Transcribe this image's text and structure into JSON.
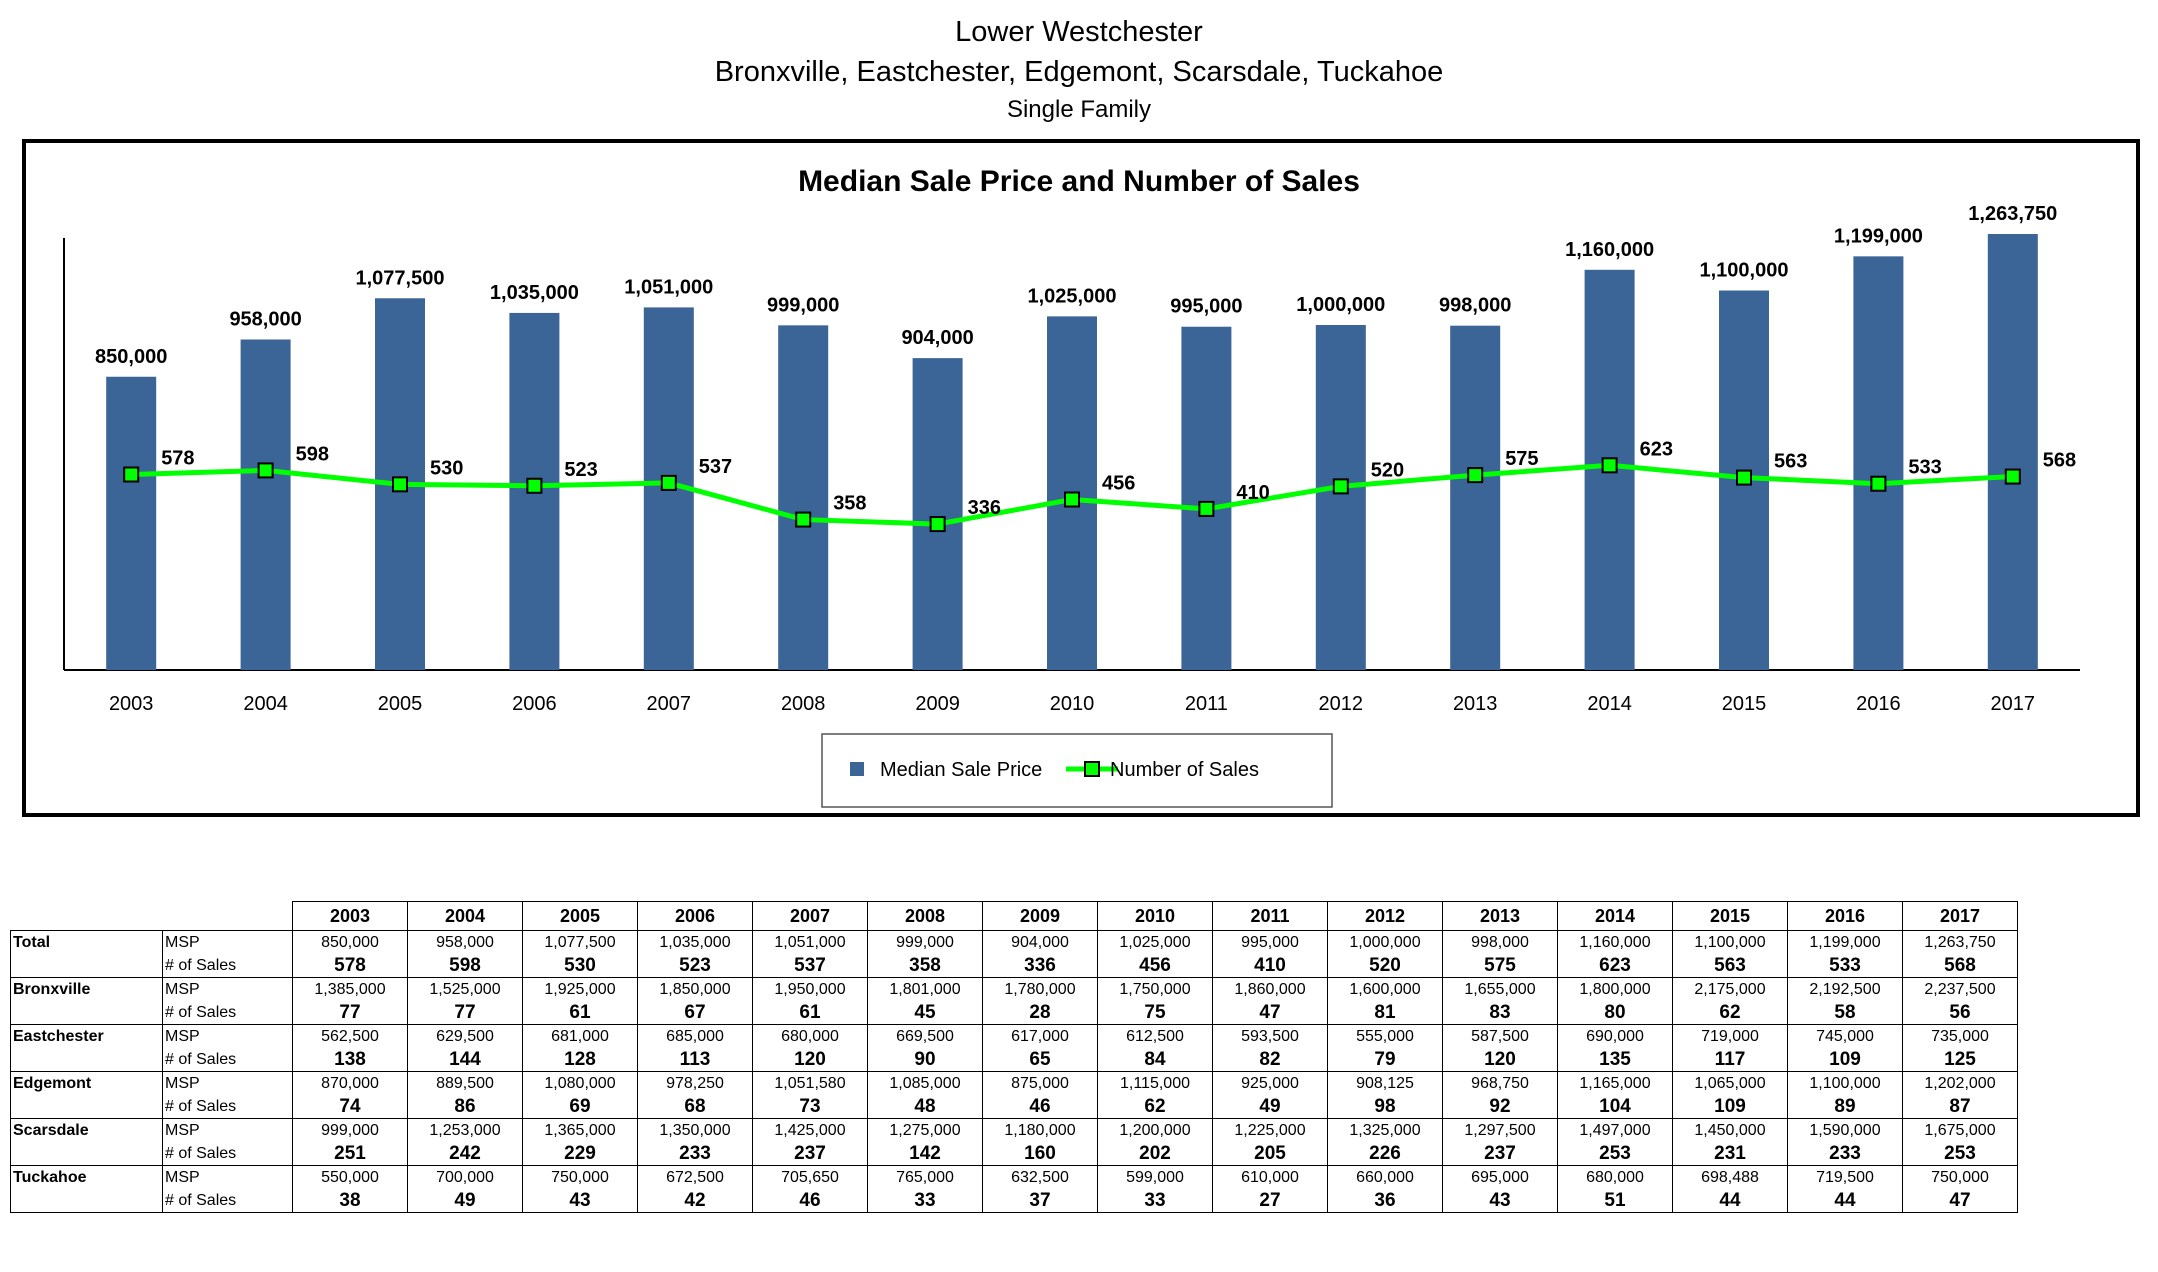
{
  "header": {
    "line1": "Lower Westchester",
    "line2": "Bronxville, Eastchester, Edgemont, Scarsdale, Tuckahoe",
    "line3": "Single Family"
  },
  "chart_data": {
    "type": "bar",
    "title": "Median Sale Price and Number of Sales",
    "categories": [
      "2003",
      "2004",
      "2005",
      "2006",
      "2007",
      "2008",
      "2009",
      "2010",
      "2011",
      "2012",
      "2013",
      "2014",
      "2015",
      "2016",
      "2017"
    ],
    "series": [
      {
        "name": "Median Sale Price",
        "type": "bar",
        "color": "#3b6497",
        "values": [
          850000,
          958000,
          1077500,
          1035000,
          1051000,
          999000,
          904000,
          1025000,
          995000,
          1000000,
          998000,
          1160000,
          1100000,
          1199000,
          1263750
        ],
        "labels": [
          "850,000",
          "958,000",
          "1,077,500",
          "1,035,000",
          "1,051,000",
          "999,000",
          "904,000",
          "1,025,000",
          "995,000",
          "1,000,000",
          "998,000",
          "1,160,000",
          "1,100,000",
          "1,199,000",
          "1,263,750"
        ]
      },
      {
        "name": "Number of Sales",
        "type": "line",
        "color": "#00ff00",
        "values": [
          578,
          598,
          530,
          523,
          537,
          358,
          336,
          456,
          410,
          520,
          575,
          623,
          563,
          533,
          568
        ],
        "labels": [
          "578",
          "598",
          "530",
          "523",
          "537",
          "358",
          "336",
          "456",
          "410",
          "520",
          "575",
          "623",
          "563",
          "533",
          "568"
        ]
      }
    ],
    "xlabel": "",
    "ylabel": "",
    "legend_position": "bottom-center",
    "grid": false
  },
  "table": {
    "years": [
      "2003",
      "2004",
      "2005",
      "2006",
      "2007",
      "2008",
      "2009",
      "2010",
      "2011",
      "2012",
      "2013",
      "2014",
      "2015",
      "2016",
      "2017"
    ],
    "msp_label": "MSP",
    "count_label": "# of Sales",
    "regions": [
      {
        "name": "Total",
        "msp": [
          "850,000",
          "958,000",
          "1,077,500",
          "1,035,000",
          "1,051,000",
          "999,000",
          "904,000",
          "1,025,000",
          "995,000",
          "1,000,000",
          "998,000",
          "1,160,000",
          "1,100,000",
          "1,199,000",
          "1,263,750"
        ],
        "count": [
          "578",
          "598",
          "530",
          "523",
          "537",
          "358",
          "336",
          "456",
          "410",
          "520",
          "575",
          "623",
          "563",
          "533",
          "568"
        ]
      },
      {
        "name": "Bronxville",
        "msp": [
          "1,385,000",
          "1,525,000",
          "1,925,000",
          "1,850,000",
          "1,950,000",
          "1,801,000",
          "1,780,000",
          "1,750,000",
          "1,860,000",
          "1,600,000",
          "1,655,000",
          "1,800,000",
          "2,175,000",
          "2,192,500",
          "2,237,500"
        ],
        "count": [
          "77",
          "77",
          "61",
          "67",
          "61",
          "45",
          "28",
          "75",
          "47",
          "81",
          "83",
          "80",
          "62",
          "58",
          "56"
        ]
      },
      {
        "name": "Eastchester",
        "msp": [
          "562,500",
          "629,500",
          "681,000",
          "685,000",
          "680,000",
          "669,500",
          "617,000",
          "612,500",
          "593,500",
          "555,000",
          "587,500",
          "690,000",
          "719,000",
          "745,000",
          "735,000"
        ],
        "count": [
          "138",
          "144",
          "128",
          "113",
          "120",
          "90",
          "65",
          "84",
          "82",
          "79",
          "120",
          "135",
          "117",
          "109",
          "125"
        ]
      },
      {
        "name": "Edgemont",
        "msp": [
          "870,000",
          "889,500",
          "1,080,000",
          "978,250",
          "1,051,580",
          "1,085,000",
          "875,000",
          "1,115,000",
          "925,000",
          "908,125",
          "968,750",
          "1,165,000",
          "1,065,000",
          "1,100,000",
          "1,202,000"
        ],
        "count": [
          "74",
          "86",
          "69",
          "68",
          "73",
          "48",
          "46",
          "62",
          "49",
          "98",
          "92",
          "104",
          "109",
          "89",
          "87"
        ]
      },
      {
        "name": "Scarsdale",
        "msp": [
          "999,000",
          "1,253,000",
          "1,365,000",
          "1,350,000",
          "1,425,000",
          "1,275,000",
          "1,180,000",
          "1,200,000",
          "1,225,000",
          "1,325,000",
          "1,297,500",
          "1,497,000",
          "1,450,000",
          "1,590,000",
          "1,675,000"
        ],
        "count": [
          "251",
          "242",
          "229",
          "233",
          "237",
          "142",
          "160",
          "202",
          "205",
          "226",
          "237",
          "253",
          "231",
          "233",
          "253"
        ]
      },
      {
        "name": "Tuckahoe",
        "msp": [
          "550,000",
          "700,000",
          "750,000",
          "672,500",
          "705,650",
          "765,000",
          "632,500",
          "599,000",
          "610,000",
          "660,000",
          "695,000",
          "680,000",
          "698,488",
          "719,500",
          "750,000"
        ],
        "count": [
          "38",
          "49",
          "43",
          "42",
          "46",
          "33",
          "37",
          "33",
          "27",
          "36",
          "43",
          "51",
          "44",
          "44",
          "47"
        ]
      }
    ]
  }
}
